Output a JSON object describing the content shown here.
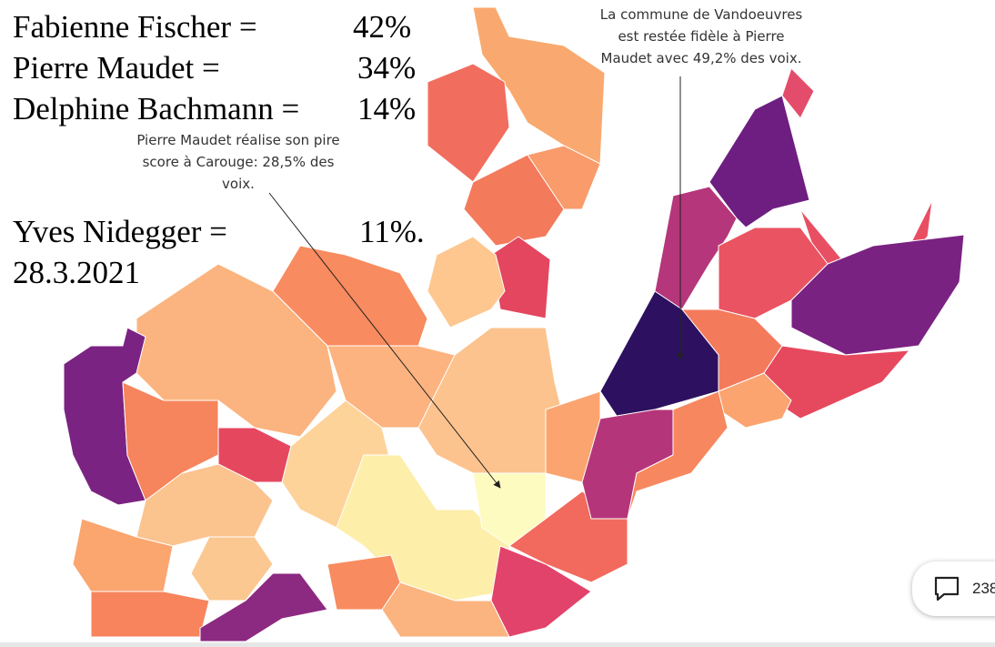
{
  "results": [
    {
      "name": "Fabienne Fischer =",
      "share": "42%"
    },
    {
      "name": "Pierre Maudet =",
      "share": "34%"
    },
    {
      "name": "Delphine Bachmann =",
      "share": "14%"
    },
    {
      "name": "Yves Nidegger =",
      "share": "11%."
    }
  ],
  "date": "28.3.2021",
  "annotations": [
    {
      "lines": [
        "Pierre Maudet réalise son pire",
        "score à Carouge: 28,5% des",
        "voix."
      ]
    },
    {
      "lines": [
        "La commune de Vandoeuvres",
        "est restée fidèle à Pierre",
        "Maudet avec 49,2% des voix."
      ]
    }
  ],
  "comment_count": "238"
}
